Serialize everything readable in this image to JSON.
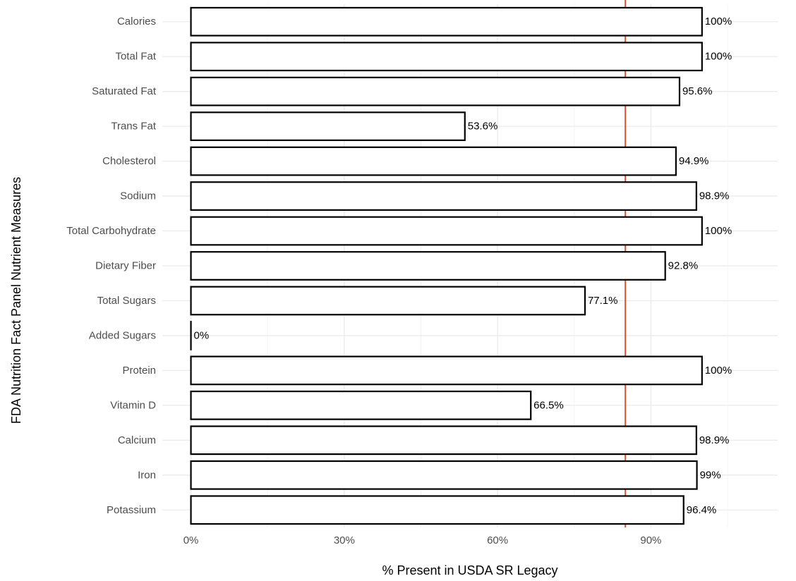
{
  "chart_data": {
    "type": "bar",
    "orientation": "horizontal",
    "categories": [
      "Calories",
      "Total Fat",
      "Saturated Fat",
      "Trans Fat",
      "Cholesterol",
      "Sodium",
      "Total Carbohydrate",
      "Dietary Fiber",
      "Total Sugars",
      "Added Sugars",
      "Protein",
      "Vitamin D",
      "Calcium",
      "Iron",
      "Potassium"
    ],
    "values": [
      100,
      100,
      95.6,
      53.6,
      94.9,
      98.9,
      100,
      92.8,
      77.1,
      0,
      100,
      66.5,
      98.9,
      99,
      96.4
    ],
    "data_labels": [
      "100%",
      "100%",
      "95.6%",
      "53.6%",
      "94.9%",
      "98.9%",
      "100%",
      "92.8%",
      "77.1%",
      "0%",
      "100%",
      "66.5%",
      "98.9%",
      "99%",
      "96.4%"
    ],
    "xlabel": "% Present in USDA SR Legacy",
    "ylabel": "FDA Nutrition Fact Panel Nutrient Measures",
    "xlim": [
      -5.6,
      114.8
    ],
    "x_ticks": [
      0,
      30,
      60,
      90
    ],
    "x_tick_labels": [
      "0%",
      "30%",
      "60%",
      "90%"
    ],
    "reference_line": 85,
    "grid": true,
    "legend": "none",
    "colors": {
      "bar_fill": "#ffffff",
      "bar_stroke": "#000000",
      "reference_line": "#e0522c",
      "grid_major": "#ebebeb",
      "grid_minor": "#f2f2f2",
      "tick_text": "#4d4d4d",
      "text": "#000000"
    }
  }
}
